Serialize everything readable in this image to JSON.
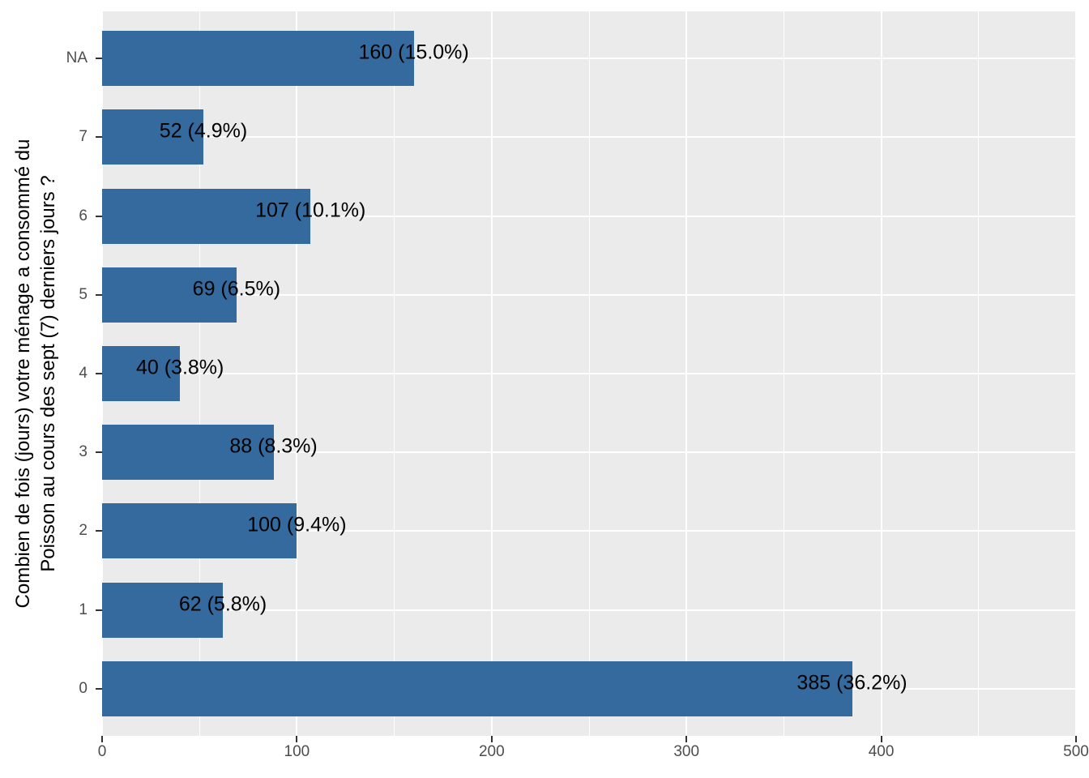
{
  "figure": {
    "y_axis_title_line1": "Combien de fois (jours) votre ménage a consommé du",
    "y_axis_title_line2": "Poisson au cours des sept (7) derniers jours ?"
  },
  "chart_data": {
    "type": "bar",
    "orientation": "horizontal",
    "title": "",
    "xlabel": "",
    "ylabel": "Combien de fois (jours) votre ménage a consommé du Poisson au cours des sept (7) derniers jours ?",
    "categories": [
      "NA",
      "7",
      "6",
      "5",
      "4",
      "3",
      "2",
      "1",
      "0"
    ],
    "values": [
      160,
      52,
      107,
      69,
      40,
      88,
      100,
      62,
      385
    ],
    "percents": [
      15.0,
      4.9,
      10.1,
      6.5,
      3.8,
      8.3,
      9.4,
      5.8,
      36.2
    ],
    "bar_labels": [
      "160 (15.0%)",
      "52 (4.9%)",
      "107 (10.1%)",
      "69 (6.5%)",
      "40 (3.8%)",
      "88 (8.3%)",
      "100 (9.4%)",
      "62 (5.8%)",
      "385 (36.2%)"
    ],
    "xlim": [
      0,
      500
    ],
    "x_major_ticks": [
      0,
      100,
      200,
      300,
      400,
      500
    ],
    "x_minor_ticks": [
      50,
      150,
      250,
      350,
      450
    ],
    "grid": "on",
    "legend_position": "none",
    "colors": {
      "bar_fill": "#346a9d",
      "panel_background": "#ebebeb",
      "gridline": "#ffffff",
      "axis_text": "#4d4d4d",
      "tick_mark": "#333333",
      "bar_label_text": "#000000",
      "figure_background": "#ffffff"
    }
  }
}
